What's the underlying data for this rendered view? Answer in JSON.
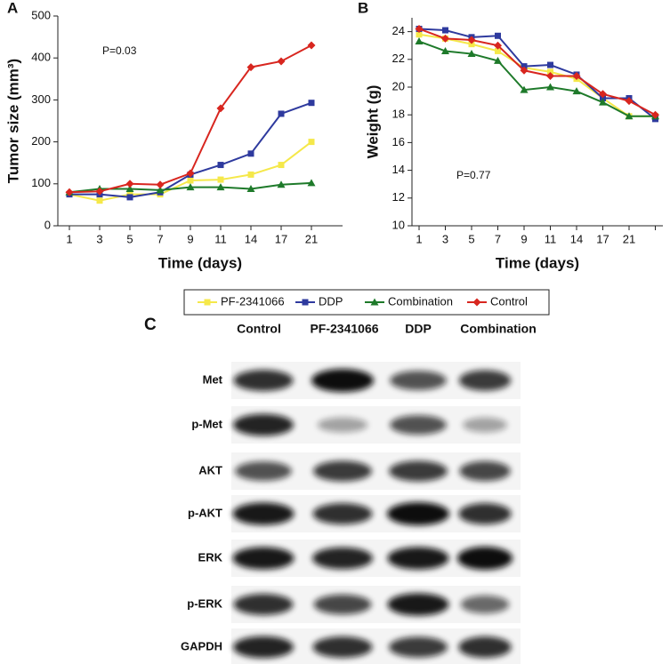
{
  "chart_data": [
    {
      "type": "line",
      "panel": "A",
      "ylabel": "Tumor size (mm³)",
      "xlabel": "Time (days)",
      "annotation": "P=0.03",
      "categories": [
        "1",
        "3",
        "5",
        "7",
        "9",
        "11",
        "14",
        "17",
        "21"
      ],
      "ylim": [
        0,
        500
      ],
      "yticks": [
        0,
        100,
        200,
        300,
        400,
        500
      ],
      "series": [
        {
          "name": "PF-2341066",
          "color": "#f5e84a",
          "marker": "square",
          "values": [
            75,
            60,
            75,
            75,
            108,
            110,
            122,
            145,
            200
          ]
        },
        {
          "name": "DDP",
          "color": "#2e3a9e",
          "marker": "square",
          "values": [
            75,
            75,
            68,
            80,
            122,
            145,
            172,
            267,
            293
          ]
        },
        {
          "name": "Combination",
          "color": "#1e7a2a",
          "marker": "triangle",
          "values": [
            80,
            88,
            88,
            85,
            92,
            92,
            88,
            98,
            102
          ]
        },
        {
          "name": "Control",
          "color": "#d8261f",
          "marker": "diamond",
          "values": [
            80,
            82,
            100,
            98,
            125,
            280,
            378,
            392,
            430
          ]
        }
      ]
    },
    {
      "type": "line",
      "panel": "B",
      "ylabel": "Weight (g)",
      "xlabel": "Time (days)",
      "annotation": "P=0.77",
      "categories": [
        "1",
        "3",
        "5",
        "7",
        "9",
        "11",
        "14",
        "17",
        "21",
        null
      ],
      "ylim": [
        10,
        25
      ],
      "yticks": [
        10,
        12,
        14,
        16,
        18,
        20,
        22,
        24
      ],
      "series": [
        {
          "color": "#f5e84a",
          "marker": "square",
          "values": [
            23.8,
            23.5,
            23.1,
            22.6,
            21.4,
            21.1,
            20.6,
            19.2,
            17.9,
            17.9
          ]
        },
        {
          "color": "#2e3a9e",
          "marker": "square",
          "values": [
            24.2,
            24.1,
            23.6,
            23.7,
            21.5,
            21.6,
            20.9,
            19.2,
            19.2,
            17.7
          ]
        },
        {
          "color": "#1e7a2a",
          "marker": "triangle",
          "values": [
            23.3,
            22.6,
            22.4,
            21.9,
            19.8,
            20.0,
            19.7,
            18.9,
            17.9,
            17.9
          ]
        },
        {
          "color": "#d8261f",
          "marker": "diamond",
          "values": [
            24.2,
            23.5,
            23.4,
            23.0,
            21.2,
            20.8,
            20.8,
            19.5,
            19.0,
            18.0
          ]
        }
      ]
    }
  ],
  "blot": {
    "panel": "C",
    "columns": [
      "Control",
      "PF-2341066",
      "DDP",
      "Combination"
    ],
    "rows": [
      "Met",
      "p-Met",
      "AKT",
      "p-AKT",
      "ERK",
      "p-ERK",
      "GAPDH"
    ]
  }
}
